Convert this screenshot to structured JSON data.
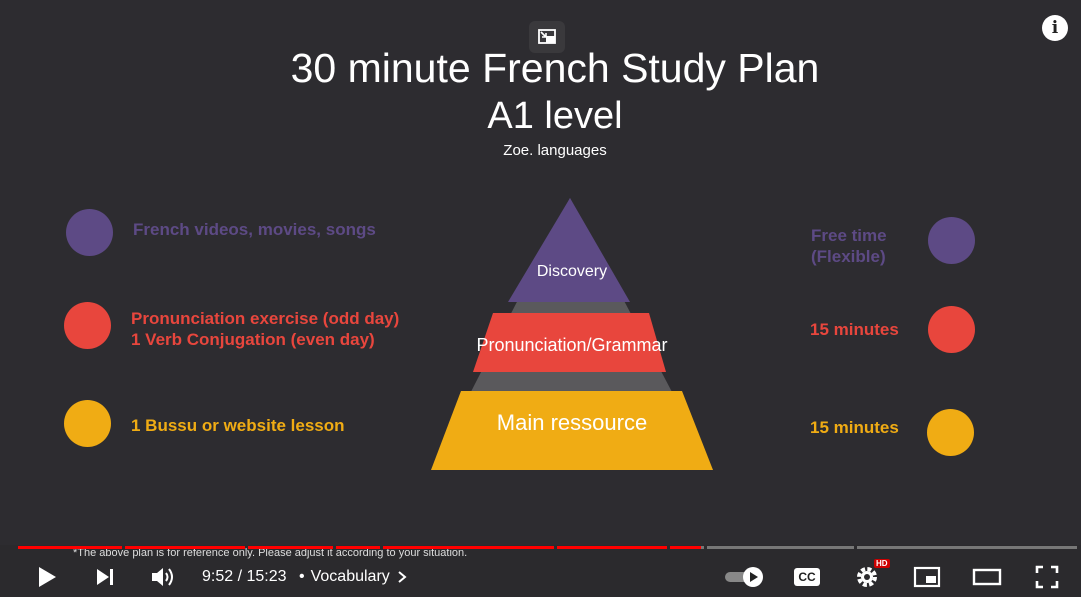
{
  "slide": {
    "title": "30 minute French Study Plan",
    "level": "A1 level",
    "author": "Zoe. languages",
    "rows": [
      {
        "label_lines": [
          "French videos, movies, songs"
        ],
        "right_lines": [
          "Free time",
          "(Flexible)"
        ],
        "color": "#5d4a85"
      },
      {
        "label_lines": [
          "Pronunciation exercise (odd day)",
          "1 Verb Conjugation (even day)"
        ],
        "right_lines": [
          "15 minutes"
        ],
        "color": "#e8463d"
      },
      {
        "label_lines": [
          "1 Bussu or website lesson"
        ],
        "right_lines": [
          "15 minutes"
        ],
        "color": "#f0ac14"
      }
    ],
    "pyramid": {
      "top": "Discovery",
      "middle": "Pronunciation/Grammar",
      "bottom": "Main ressource"
    },
    "footnote": "*The above plan is for reference only. Please adjust it according to your situation."
  },
  "player": {
    "time_current": "9:52",
    "time_total": "15:23",
    "time_sep": " / ",
    "bullet": "•",
    "chapter": "Vocabulary",
    "hd_badge": "HD",
    "info_glyph": "i",
    "cc_label": "CC",
    "progress_played_color": "#ff0000",
    "progress_fraction": 0.641
  }
}
